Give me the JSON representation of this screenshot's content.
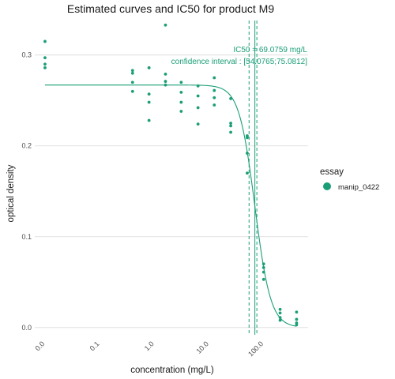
{
  "chart_data": {
    "type": "scatter",
    "title": "Estimated curves and IC50 for product M9",
    "xlabel": "concentration (mg/L)",
    "ylabel": "optical density",
    "x_scale": "log10",
    "x_ticks": [
      {
        "value": 0.01,
        "label": "0.0"
      },
      {
        "value": 0.1,
        "label": "0.1"
      },
      {
        "value": 1,
        "label": "1.0"
      },
      {
        "value": 10,
        "label": "10.0"
      },
      {
        "value": 100,
        "label": "100.0"
      }
    ],
    "y_ticks": [
      {
        "value": 0.0,
        "label": "0.0"
      },
      {
        "value": 0.1,
        "label": "0.1"
      },
      {
        "value": 0.2,
        "label": "0.2"
      },
      {
        "value": 0.3,
        "label": "0.3"
      }
    ],
    "xlim": [
      0.0065,
      650
    ],
    "ylim": [
      -0.008,
      0.338
    ],
    "grid": "horizontal major",
    "legend": {
      "title": "essay",
      "placement": "right",
      "entries": [
        "manip_0422"
      ]
    },
    "series": [
      {
        "name": "manip_0422",
        "color": "#1b9e77",
        "points": [
          [
            0.01,
            0.315
          ],
          [
            0.01,
            0.297
          ],
          [
            0.01,
            0.29
          ],
          [
            0.01,
            0.286
          ],
          [
            0.4,
            0.283
          ],
          [
            0.4,
            0.28
          ],
          [
            0.4,
            0.27
          ],
          [
            0.4,
            0.26
          ],
          [
            0.8,
            0.286
          ],
          [
            0.8,
            0.257
          ],
          [
            0.8,
            0.248
          ],
          [
            0.8,
            0.228
          ],
          [
            1.6,
            0.333
          ],
          [
            1.6,
            0.279
          ],
          [
            1.6,
            0.271
          ],
          [
            1.6,
            0.267
          ],
          [
            3.1,
            0.27
          ],
          [
            3.1,
            0.259
          ],
          [
            3.1,
            0.248
          ],
          [
            3.1,
            0.238
          ],
          [
            6.3,
            0.266
          ],
          [
            6.3,
            0.255
          ],
          [
            6.3,
            0.242
          ],
          [
            6.3,
            0.224
          ],
          [
            12.5,
            0.275
          ],
          [
            12.5,
            0.261
          ],
          [
            12.5,
            0.253
          ],
          [
            12.5,
            0.245
          ],
          [
            25,
            0.252
          ],
          [
            25,
            0.225
          ],
          [
            25,
            0.222
          ],
          [
            25,
            0.215
          ],
          [
            50,
            0.211
          ],
          [
            50,
            0.209
          ],
          [
            50,
            0.192
          ],
          [
            50,
            0.17
          ],
          [
            100,
            0.07
          ],
          [
            100,
            0.066
          ],
          [
            100,
            0.061
          ],
          [
            100,
            0.053
          ],
          [
            200,
            0.02
          ],
          [
            200,
            0.016
          ],
          [
            200,
            0.011
          ],
          [
            200,
            0.008
          ],
          [
            400,
            0.017
          ],
          [
            400,
            0.009
          ],
          [
            400,
            0.005
          ],
          [
            400,
            0.003
          ]
        ]
      }
    ],
    "fitted_curve": {
      "model": "log-logistic",
      "upper": 0.267,
      "lower": 0.0,
      "ic50": 69.0759,
      "hill_slope": 3.0,
      "x_range": [
        0.01,
        400
      ]
    },
    "ic50_lines": {
      "estimate": 69.0759,
      "ci_low": 54.0765,
      "ci_high": 75.0812
    },
    "annotations": [
      {
        "text": "IC50 = 69.0759 mg/L"
      },
      {
        "text": "confidence interval : [54.0765;75.0812]"
      }
    ]
  }
}
